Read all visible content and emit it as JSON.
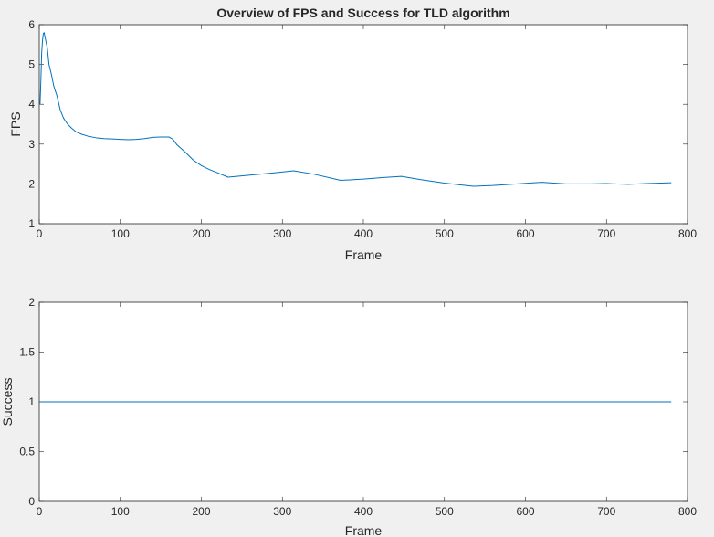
{
  "figure": {
    "background": "#f0f0f0",
    "axes_background": "#ffffff",
    "axis_color": "#262626",
    "line_color": "#0072bd"
  },
  "chart_data": [
    {
      "type": "line",
      "title": "Overview of FPS and Success for TLD algorithm",
      "xlabel": "Frame",
      "ylabel": "FPS",
      "xlim": [
        0,
        800
      ],
      "ylim": [
        1,
        6
      ],
      "xticks": [
        "0",
        "100",
        "200",
        "300",
        "400",
        "500",
        "600",
        "700",
        "800"
      ],
      "yticks": [
        "1",
        "2",
        "3",
        "4",
        "5",
        "6"
      ],
      "grid": false,
      "series": [
        {
          "x": [
            1,
            2,
            3,
            4,
            5,
            6,
            8,
            10,
            12,
            15,
            18,
            22,
            26,
            30,
            35,
            40,
            46,
            52,
            60,
            70,
            80,
            90,
            100,
            110,
            120,
            130,
            140,
            150,
            160,
            165,
            170,
            180,
            190,
            200,
            210,
            220,
            233,
            260,
            290,
            314,
            340,
            372,
            400,
            425,
            447,
            470,
            500,
            536,
            560,
            590,
            620,
            650,
            680,
            700,
            710,
            727,
            750,
            780
          ],
          "y": [
            4.0,
            4.6,
            5.3,
            5.6,
            5.78,
            5.8,
            5.6,
            5.4,
            5.0,
            4.75,
            4.45,
            4.2,
            3.85,
            3.65,
            3.5,
            3.4,
            3.3,
            3.25,
            3.2,
            3.16,
            3.14,
            3.13,
            3.12,
            3.11,
            3.12,
            3.14,
            3.17,
            3.18,
            3.18,
            3.12,
            2.98,
            2.8,
            2.6,
            2.46,
            2.36,
            2.28,
            2.17,
            2.22,
            2.28,
            2.33,
            2.24,
            2.09,
            2.12,
            2.16,
            2.19,
            2.11,
            2.02,
            1.94,
            1.96,
            2.0,
            2.04,
            2.0,
            2.0,
            2.01,
            2.0,
            1.99,
            2.01,
            2.03
          ]
        }
      ]
    },
    {
      "type": "line",
      "title": "",
      "xlabel": "Frame",
      "ylabel": "Success",
      "xlim": [
        0,
        800
      ],
      "ylim": [
        0,
        2
      ],
      "xticks": [
        "0",
        "100",
        "200",
        "300",
        "400",
        "500",
        "600",
        "700",
        "800"
      ],
      "yticks": [
        "0",
        "0.5",
        "1",
        "1.5",
        "2"
      ],
      "grid": false,
      "series": [
        {
          "x": [
            1,
            780
          ],
          "y": [
            1,
            1
          ]
        }
      ]
    }
  ]
}
